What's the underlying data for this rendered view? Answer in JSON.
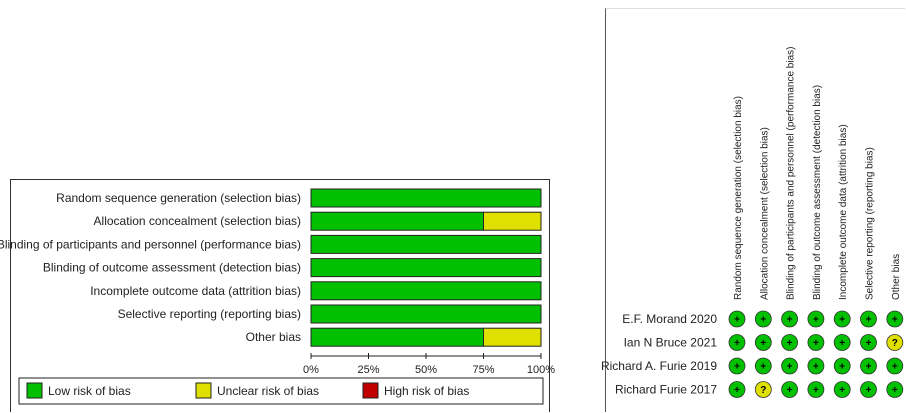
{
  "chart_data": [
    {
      "type": "bar",
      "subtype": "stacked-horizontal-percent",
      "categories": [
        "Random sequence generation (selection bias)",
        "Allocation concealment (selection bias)",
        "Blinding of participants and personnel (performance bias)",
        "Blinding of outcome assessment (detection bias)",
        "Incomplete outcome data (attrition bias)",
        "Selective reporting (reporting bias)",
        "Other bias"
      ],
      "series": [
        {
          "name": "Low risk of bias",
          "color": "#00c000",
          "values": [
            100,
            75,
            100,
            100,
            100,
            100,
            75
          ]
        },
        {
          "name": "Unclear risk of bias",
          "color": "#e0e000",
          "values": [
            0,
            25,
            0,
            0,
            0,
            0,
            25
          ]
        },
        {
          "name": "High risk of bias",
          "color": "#c00000",
          "values": [
            0,
            0,
            0,
            0,
            0,
            0,
            0
          ]
        }
      ],
      "xlim": [
        0,
        100
      ],
      "xticks": [
        "0%",
        "25%",
        "50%",
        "75%",
        "100%"
      ],
      "legend": "bottom"
    },
    {
      "type": "table",
      "subtype": "risk-of-bias-summary",
      "columns": [
        "Random sequence generation (selection bias)",
        "Allocation concealment (selection bias)",
        "Blinding of participants and personnel (performance bias)",
        "Blinding of outcome assessment (detection bias)",
        "Incomplete outcome data (attrition bias)",
        "Selective reporting (reporting bias)",
        "Other bias"
      ],
      "rows": [
        {
          "study": "E.F. Morand 2020",
          "judgements": [
            "+",
            "+",
            "+",
            "+",
            "+",
            "+",
            "+"
          ]
        },
        {
          "study": "Ian N Bruce 2021",
          "judgements": [
            "+",
            "+",
            "+",
            "+",
            "+",
            "+",
            "?"
          ]
        },
        {
          "study": "Richard A. Furie 2019",
          "judgements": [
            "+",
            "+",
            "+",
            "+",
            "+",
            "+",
            "+"
          ]
        },
        {
          "study": "Richard Furie 2017",
          "judgements": [
            "+",
            "?",
            "+",
            "+",
            "+",
            "+",
            "+"
          ]
        }
      ],
      "colors": {
        "+": "#00c000",
        "?": "#e0e000"
      }
    }
  ]
}
